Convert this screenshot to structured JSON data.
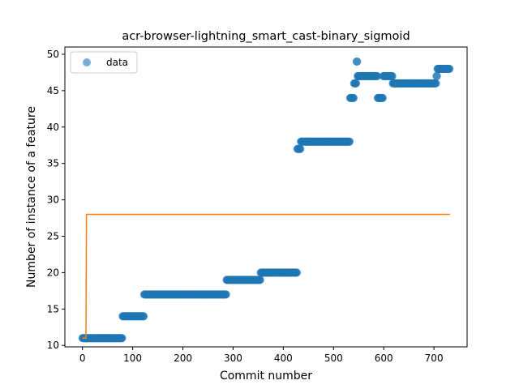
{
  "chart_data": {
    "type": "scatter",
    "title": "acr-browser-lightning_smart_cast-binary_sigmoid",
    "xlabel": "Commit number",
    "ylabel": "Number of instance of a feature",
    "xlim": [
      -35,
      766
    ],
    "ylim": [
      9.8,
      51.0
    ],
    "xticks": [
      0,
      100,
      200,
      300,
      400,
      500,
      600,
      700
    ],
    "yticks": [
      10,
      15,
      20,
      25,
      30,
      35,
      40,
      45,
      50
    ],
    "grid": false,
    "legend": {
      "location": "top-left",
      "entries": [
        "data"
      ]
    },
    "colors": {
      "data": "#1f77b4",
      "fit": "#ff7f0e"
    },
    "series": [
      {
        "name": "data",
        "kind": "scatter",
        "segments": [
          {
            "x_start": 0,
            "x_end": 80,
            "y": 11
          },
          {
            "x_start": 80,
            "x_end": 123,
            "y": 14
          },
          {
            "x_start": 123,
            "x_end": 287,
            "y": 17
          },
          {
            "x_start": 287,
            "x_end": 355,
            "y": 19
          },
          {
            "x_start": 355,
            "x_end": 428,
            "y": 20
          },
          {
            "x_start": 428,
            "x_end": 435,
            "y": 37
          },
          {
            "x_start": 435,
            "x_end": 533,
            "y": 38
          },
          {
            "x_start": 533,
            "x_end": 541,
            "y": 44
          },
          {
            "x_start": 541,
            "x_end": 546,
            "y": 46
          },
          {
            "x_start": 546,
            "x_end": 548,
            "y": 49
          },
          {
            "x_start": 548,
            "x_end": 588,
            "y": 47
          },
          {
            "x_start": 588,
            "x_end": 599,
            "y": 44
          },
          {
            "x_start": 599,
            "x_end": 618,
            "y": 47
          },
          {
            "x_start": 618,
            "x_end": 705,
            "y": 46
          },
          {
            "x_start": 705,
            "x_end": 707,
            "y": 47
          },
          {
            "x_start": 707,
            "x_end": 732,
            "y": 48
          }
        ]
      },
      {
        "name": "",
        "kind": "line",
        "x": [
          0,
          7,
          8,
          732
        ],
        "y": [
          11,
          11,
          28,
          28
        ]
      }
    ]
  }
}
